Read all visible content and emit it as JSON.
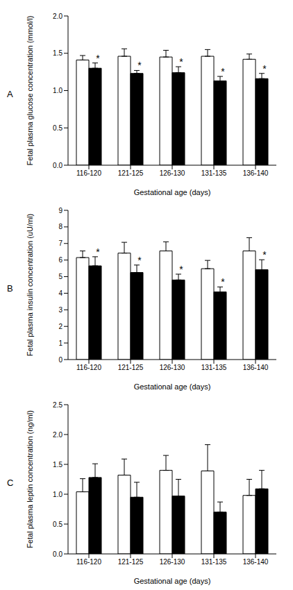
{
  "chart_data": [
    {
      "type": "bar",
      "panel": "A",
      "x_label": "Gestational age (days)",
      "y_label": "Fetal plasma glucose concentration (mmol/l)",
      "categories": [
        "116-120",
        "121-125",
        "126-130",
        "131-135",
        "136-140"
      ],
      "series": [
        {
          "color": "#ffffff",
          "values": [
            1.41,
            1.46,
            1.45,
            1.46,
            1.42
          ],
          "errors": [
            0.06,
            0.1,
            0.09,
            0.09,
            0.07
          ]
        },
        {
          "color": "#000000",
          "values": [
            1.3,
            1.23,
            1.24,
            1.13,
            1.16
          ],
          "errors": [
            0.07,
            0.04,
            0.08,
            0.06,
            0.07
          ]
        }
      ],
      "ylim": [
        0,
        2.0
      ],
      "yticks": [
        {
          "value": 0,
          "label": "0.0"
        },
        {
          "value": 0.5,
          "label": "0.5"
        },
        {
          "value": 1,
          "label": "1.0"
        },
        {
          "value": 1.5,
          "label": "1.5"
        },
        {
          "value": 2,
          "label": "2.0"
        }
      ],
      "grid": false,
      "annotations": [
        {
          "category": "116-120",
          "series": 1,
          "text": "*"
        },
        {
          "category": "121-125",
          "series": 1,
          "text": "*"
        },
        {
          "category": "126-130",
          "series": 1,
          "text": "*"
        },
        {
          "category": "131-135",
          "series": 1,
          "text": "*"
        },
        {
          "category": "136-140",
          "series": 1,
          "text": "*"
        }
      ]
    },
    {
      "type": "bar",
      "panel": "B",
      "x_label": "Gestational age (days)",
      "y_label": "Fetal plasma insulin concentration (uU/ml)",
      "categories": [
        "116-120",
        "121-125",
        "126-130",
        "131-135",
        "136-140"
      ],
      "series": [
        {
          "color": "#ffffff",
          "values": [
            6.15,
            6.42,
            6.55,
            5.48,
            6.55
          ],
          "errors": [
            0.4,
            0.65,
            0.55,
            0.5,
            0.8
          ]
        },
        {
          "color": "#000000",
          "values": [
            5.65,
            5.25,
            4.8,
            4.08,
            5.42
          ],
          "errors": [
            0.55,
            0.45,
            0.35,
            0.3,
            0.6
          ]
        }
      ],
      "ylim": [
        0,
        9
      ],
      "yticks": [
        0,
        1,
        2,
        3,
        4,
        5,
        6,
        7,
        8,
        9
      ],
      "grid": false,
      "annotations": [
        {
          "category": "116-120",
          "series": 1,
          "text": "*"
        },
        {
          "category": "121-125",
          "series": 1,
          "text": "*"
        },
        {
          "category": "126-130",
          "series": 1,
          "text": "*"
        },
        {
          "category": "131-135",
          "series": 1,
          "text": "*"
        },
        {
          "category": "136-140",
          "series": 1,
          "text": "*"
        }
      ]
    },
    {
      "type": "bar",
      "panel": "C",
      "x_label": "Gestational age (days)",
      "y_label": "Fetal plasma leptin concentration (ng/ml)",
      "categories": [
        "116-120",
        "121-125",
        "126-130",
        "131-135",
        "136-140"
      ],
      "series": [
        {
          "color": "#ffffff",
          "values": [
            1.04,
            1.32,
            1.4,
            1.39,
            0.98
          ],
          "errors": [
            0.22,
            0.27,
            0.25,
            0.44,
            0.27
          ]
        },
        {
          "color": "#000000",
          "values": [
            1.28,
            0.95,
            0.97,
            0.7,
            1.09
          ],
          "errors": [
            0.23,
            0.25,
            0.28,
            0.17,
            0.31
          ]
        }
      ],
      "ylim": [
        0,
        2.5
      ],
      "yticks": [
        {
          "value": 0,
          "label": "0.0"
        },
        {
          "value": 0.5,
          "label": "0.5"
        },
        {
          "value": 1,
          "label": "1.0"
        },
        {
          "value": 1.5,
          "label": "1.5"
        },
        {
          "value": 2,
          "label": "2.0"
        },
        {
          "value": 2.5,
          "label": "2.5"
        }
      ],
      "grid": false,
      "annotations": []
    }
  ]
}
